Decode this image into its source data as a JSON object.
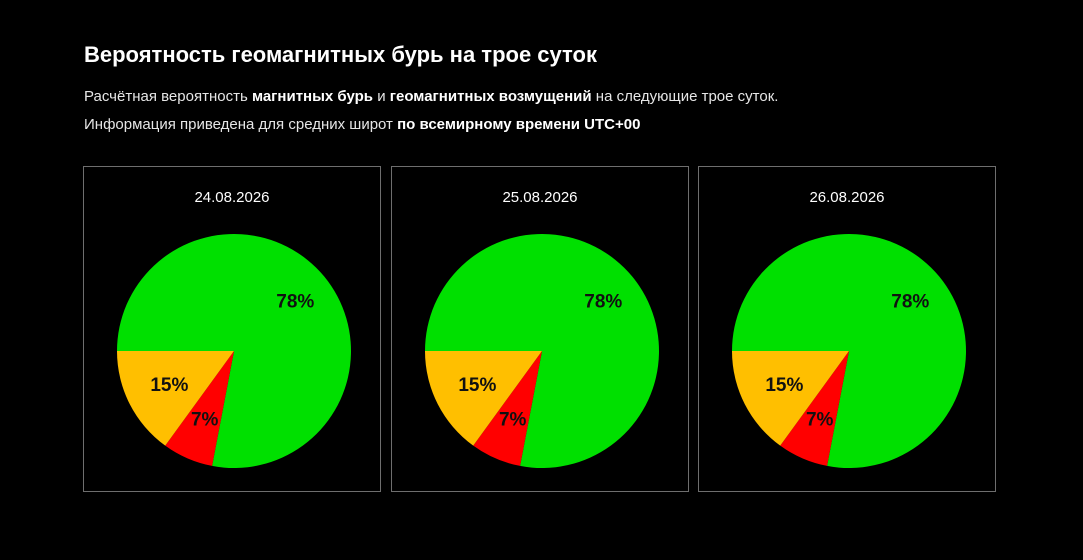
{
  "header": {
    "title": "Вероятность геомагнитных бурь на трое суток",
    "line1": {
      "t1": "Расчётная вероятность ",
      "b1": "магнитных бурь",
      "t2": " и ",
      "b2": "геомагнитных возмущений",
      "t3": " на следующие трое суток."
    },
    "line2": {
      "t1": "Информация приведена для средних широт ",
      "b1": "по всемирному времени UTC+00"
    }
  },
  "colors": {
    "green": "#00e000",
    "red": "#ff0000",
    "orange": "#ffbf00",
    "background": "#000000",
    "border": "#6e6e6e"
  },
  "chart_data": [
    {
      "type": "pie",
      "title": "24.08.2026",
      "slices": [
        {
          "label": "78%",
          "value": 78,
          "color": "#00e000"
        },
        {
          "label": "7%",
          "value": 7,
          "color": "#ff0000"
        },
        {
          "label": "15%",
          "value": 15,
          "color": "#ffbf00"
        }
      ]
    },
    {
      "type": "pie",
      "title": "25.08.2026",
      "slices": [
        {
          "label": "78%",
          "value": 78,
          "color": "#00e000"
        },
        {
          "label": "7%",
          "value": 7,
          "color": "#ff0000"
        },
        {
          "label": "15%",
          "value": 15,
          "color": "#ffbf00"
        }
      ]
    },
    {
      "type": "pie",
      "title": "26.08.2026",
      "slices": [
        {
          "label": "78%",
          "value": 78,
          "color": "#00e000"
        },
        {
          "label": "7%",
          "value": 7,
          "color": "#ff0000"
        },
        {
          "label": "15%",
          "value": 15,
          "color": "#ffbf00"
        }
      ]
    }
  ]
}
